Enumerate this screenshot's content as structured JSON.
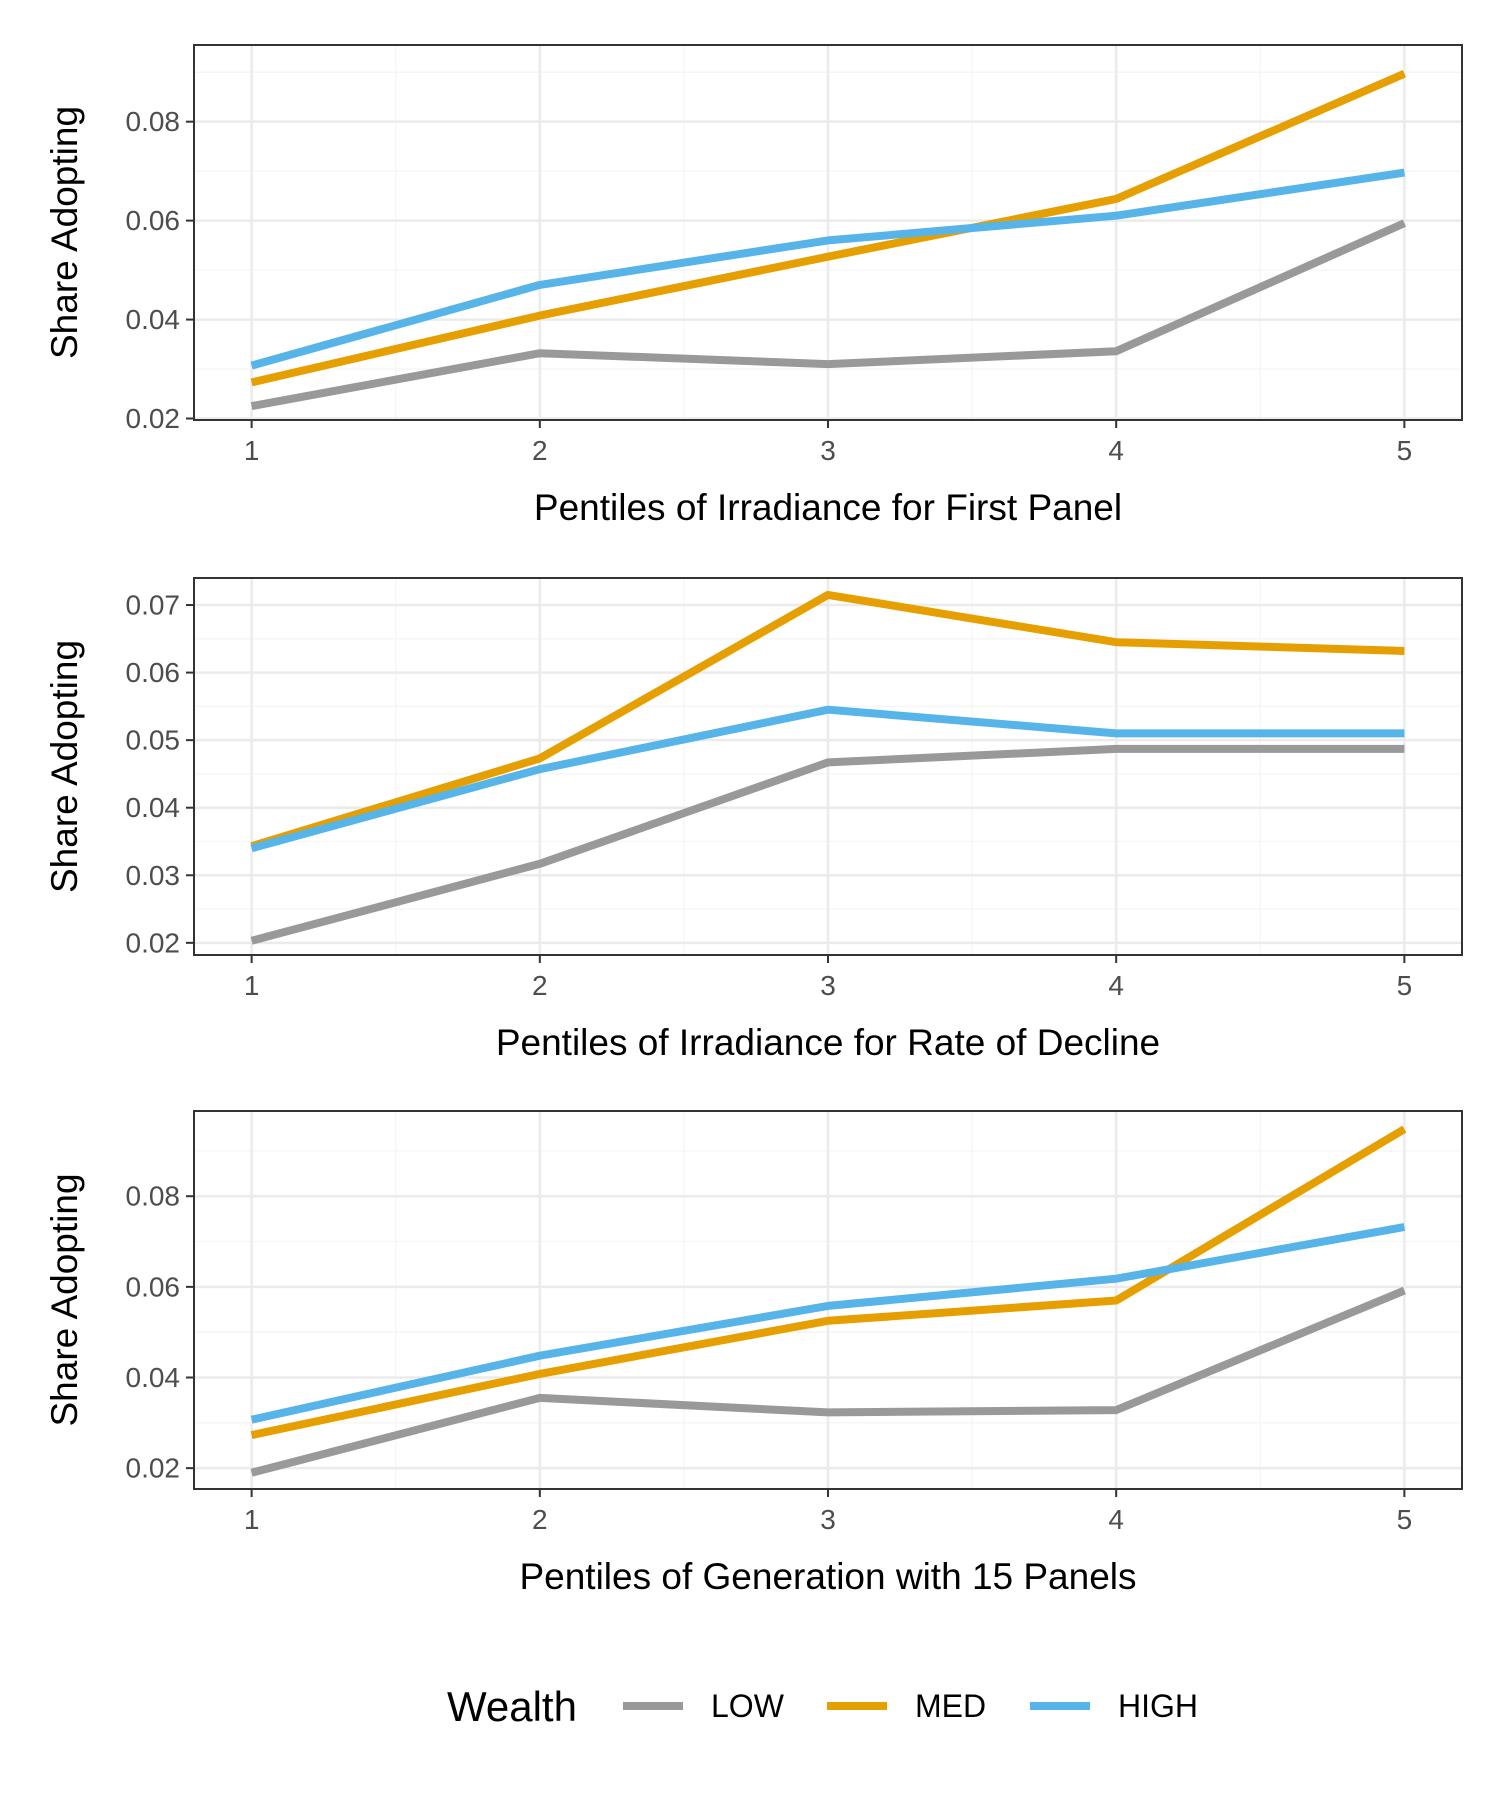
{
  "colors": {
    "LOW": "#999999",
    "MED": "#E69F00",
    "HIGH": "#56B4E9",
    "panel_border": "#333333",
    "grid_major": "#ebebeb",
    "grid_minor": "#f5f5f5"
  },
  "legend": {
    "title": "Wealth",
    "items": [
      "LOW",
      "MED",
      "HIGH"
    ]
  },
  "chart_data": [
    {
      "type": "line",
      "title": "",
      "xlabel": "Pentiles of Irradiance for First Panel",
      "ylabel": "Share Adopting",
      "x": [
        1,
        2,
        3,
        4,
        5
      ],
      "xticks": [
        1,
        2,
        3,
        4,
        5
      ],
      "xlim": [
        0.8,
        5.2
      ],
      "ylim": [
        0.0197,
        0.0955
      ],
      "yticks": [
        0.02,
        0.04,
        0.06,
        0.08
      ],
      "ytick_labels": [
        "0.02",
        "0.04",
        "0.06",
        "0.08"
      ],
      "grid": true,
      "series": [
        {
          "name": "LOW",
          "values": [
            0.0225,
            0.0332,
            0.031,
            0.0336,
            0.0595
          ]
        },
        {
          "name": "MED",
          "values": [
            0.0273,
            0.0408,
            0.0527,
            0.0644,
            0.0897
          ]
        },
        {
          "name": "HIGH",
          "values": [
            0.0307,
            0.047,
            0.056,
            0.061,
            0.0697
          ]
        }
      ]
    },
    {
      "type": "line",
      "title": "",
      "xlabel": "Pentiles of Irradiance for Rate of Decline",
      "ylabel": "Share Adopting",
      "x": [
        1,
        2,
        3,
        4,
        5
      ],
      "xticks": [
        1,
        2,
        3,
        4,
        5
      ],
      "xlim": [
        0.8,
        5.2
      ],
      "ylim": [
        0.0182,
        0.074
      ],
      "yticks": [
        0.02,
        0.03,
        0.04,
        0.05,
        0.06,
        0.07
      ],
      "ytick_labels": [
        "0.02",
        "0.03",
        "0.04",
        "0.05",
        "0.06",
        "0.07"
      ],
      "grid": true,
      "series": [
        {
          "name": "LOW",
          "values": [
            0.0203,
            0.0317,
            0.0467,
            0.0487,
            0.0487
          ]
        },
        {
          "name": "MED",
          "values": [
            0.0343,
            0.0473,
            0.0715,
            0.0645,
            0.0632
          ]
        },
        {
          "name": "HIGH",
          "values": [
            0.034,
            0.0457,
            0.0545,
            0.051,
            0.051
          ]
        }
      ]
    },
    {
      "type": "line",
      "title": "",
      "xlabel": "Pentiles of Generation with 15 Panels",
      "ylabel": "Share Adopting",
      "x": [
        1,
        2,
        3,
        4,
        5
      ],
      "xticks": [
        1,
        2,
        3,
        4,
        5
      ],
      "xlim": [
        0.8,
        5.2
      ],
      "ylim": [
        0.0154,
        0.0988
      ],
      "yticks": [
        0.02,
        0.04,
        0.06,
        0.08
      ],
      "ytick_labels": [
        "0.02",
        "0.04",
        "0.06",
        "0.08"
      ],
      "grid": true,
      "series": [
        {
          "name": "LOW",
          "values": [
            0.019,
            0.0355,
            0.0323,
            0.0328,
            0.0592
          ]
        },
        {
          "name": "MED",
          "values": [
            0.0273,
            0.0408,
            0.0525,
            0.057,
            0.0948
          ]
        },
        {
          "name": "HIGH",
          "values": [
            0.0307,
            0.0448,
            0.0558,
            0.0618,
            0.0732
          ]
        }
      ]
    }
  ]
}
